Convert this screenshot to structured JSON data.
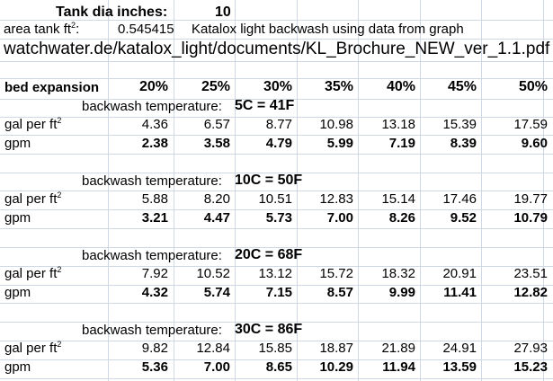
{
  "header": {
    "tank_dia_label": "Tank dia inches:",
    "tank_dia_value": "10",
    "area_label_text": "area tank ft",
    "area_label_sup": "2",
    "area_label_suffix": ":",
    "area_value": "0.545415",
    "description": "Katalox light backwash using data from graph",
    "source": "watchwater.de/katalox_light/documents/KL_Brochure_NEW_ver_1.1.pdf"
  },
  "table": {
    "expansion_label": "bed expansion",
    "columns": [
      "20%",
      "25%",
      "30%",
      "35%",
      "40%",
      "45%",
      "50%"
    ],
    "temp_prefix": "backwash temperature:",
    "row_label_gal": "gal per ft",
    "row_label_gal_sup": "2",
    "row_label_gpm": "gpm",
    "sections": [
      {
        "temp": "5C = 41F",
        "gal": [
          "4.36",
          "6.57",
          "8.77",
          "10.98",
          "13.18",
          "15.39",
          "17.59"
        ],
        "gpm": [
          "2.38",
          "3.58",
          "4.79",
          "5.99",
          "7.19",
          "8.39",
          "9.60"
        ]
      },
      {
        "temp": "10C = 50F",
        "gal": [
          "5.88",
          "8.20",
          "10.51",
          "12.83",
          "15.14",
          "17.46",
          "19.77"
        ],
        "gpm": [
          "3.21",
          "4.47",
          "5.73",
          "7.00",
          "8.26",
          "9.52",
          "10.79"
        ]
      },
      {
        "temp": "20C = 68F",
        "gal": [
          "7.92",
          "10.52",
          "13.12",
          "15.72",
          "18.32",
          "20.91",
          "23.51"
        ],
        "gpm": [
          "4.32",
          "5.74",
          "7.15",
          "8.57",
          "9.99",
          "11.41",
          "12.82"
        ]
      },
      {
        "temp": "30C = 86F",
        "gal": [
          "9.82",
          "12.84",
          "15.85",
          "18.87",
          "21.89",
          "24.91",
          "27.93"
        ],
        "gpm": [
          "5.36",
          "7.00",
          "8.65",
          "10.29",
          "11.94",
          "13.59",
          "15.23"
        ]
      }
    ]
  }
}
